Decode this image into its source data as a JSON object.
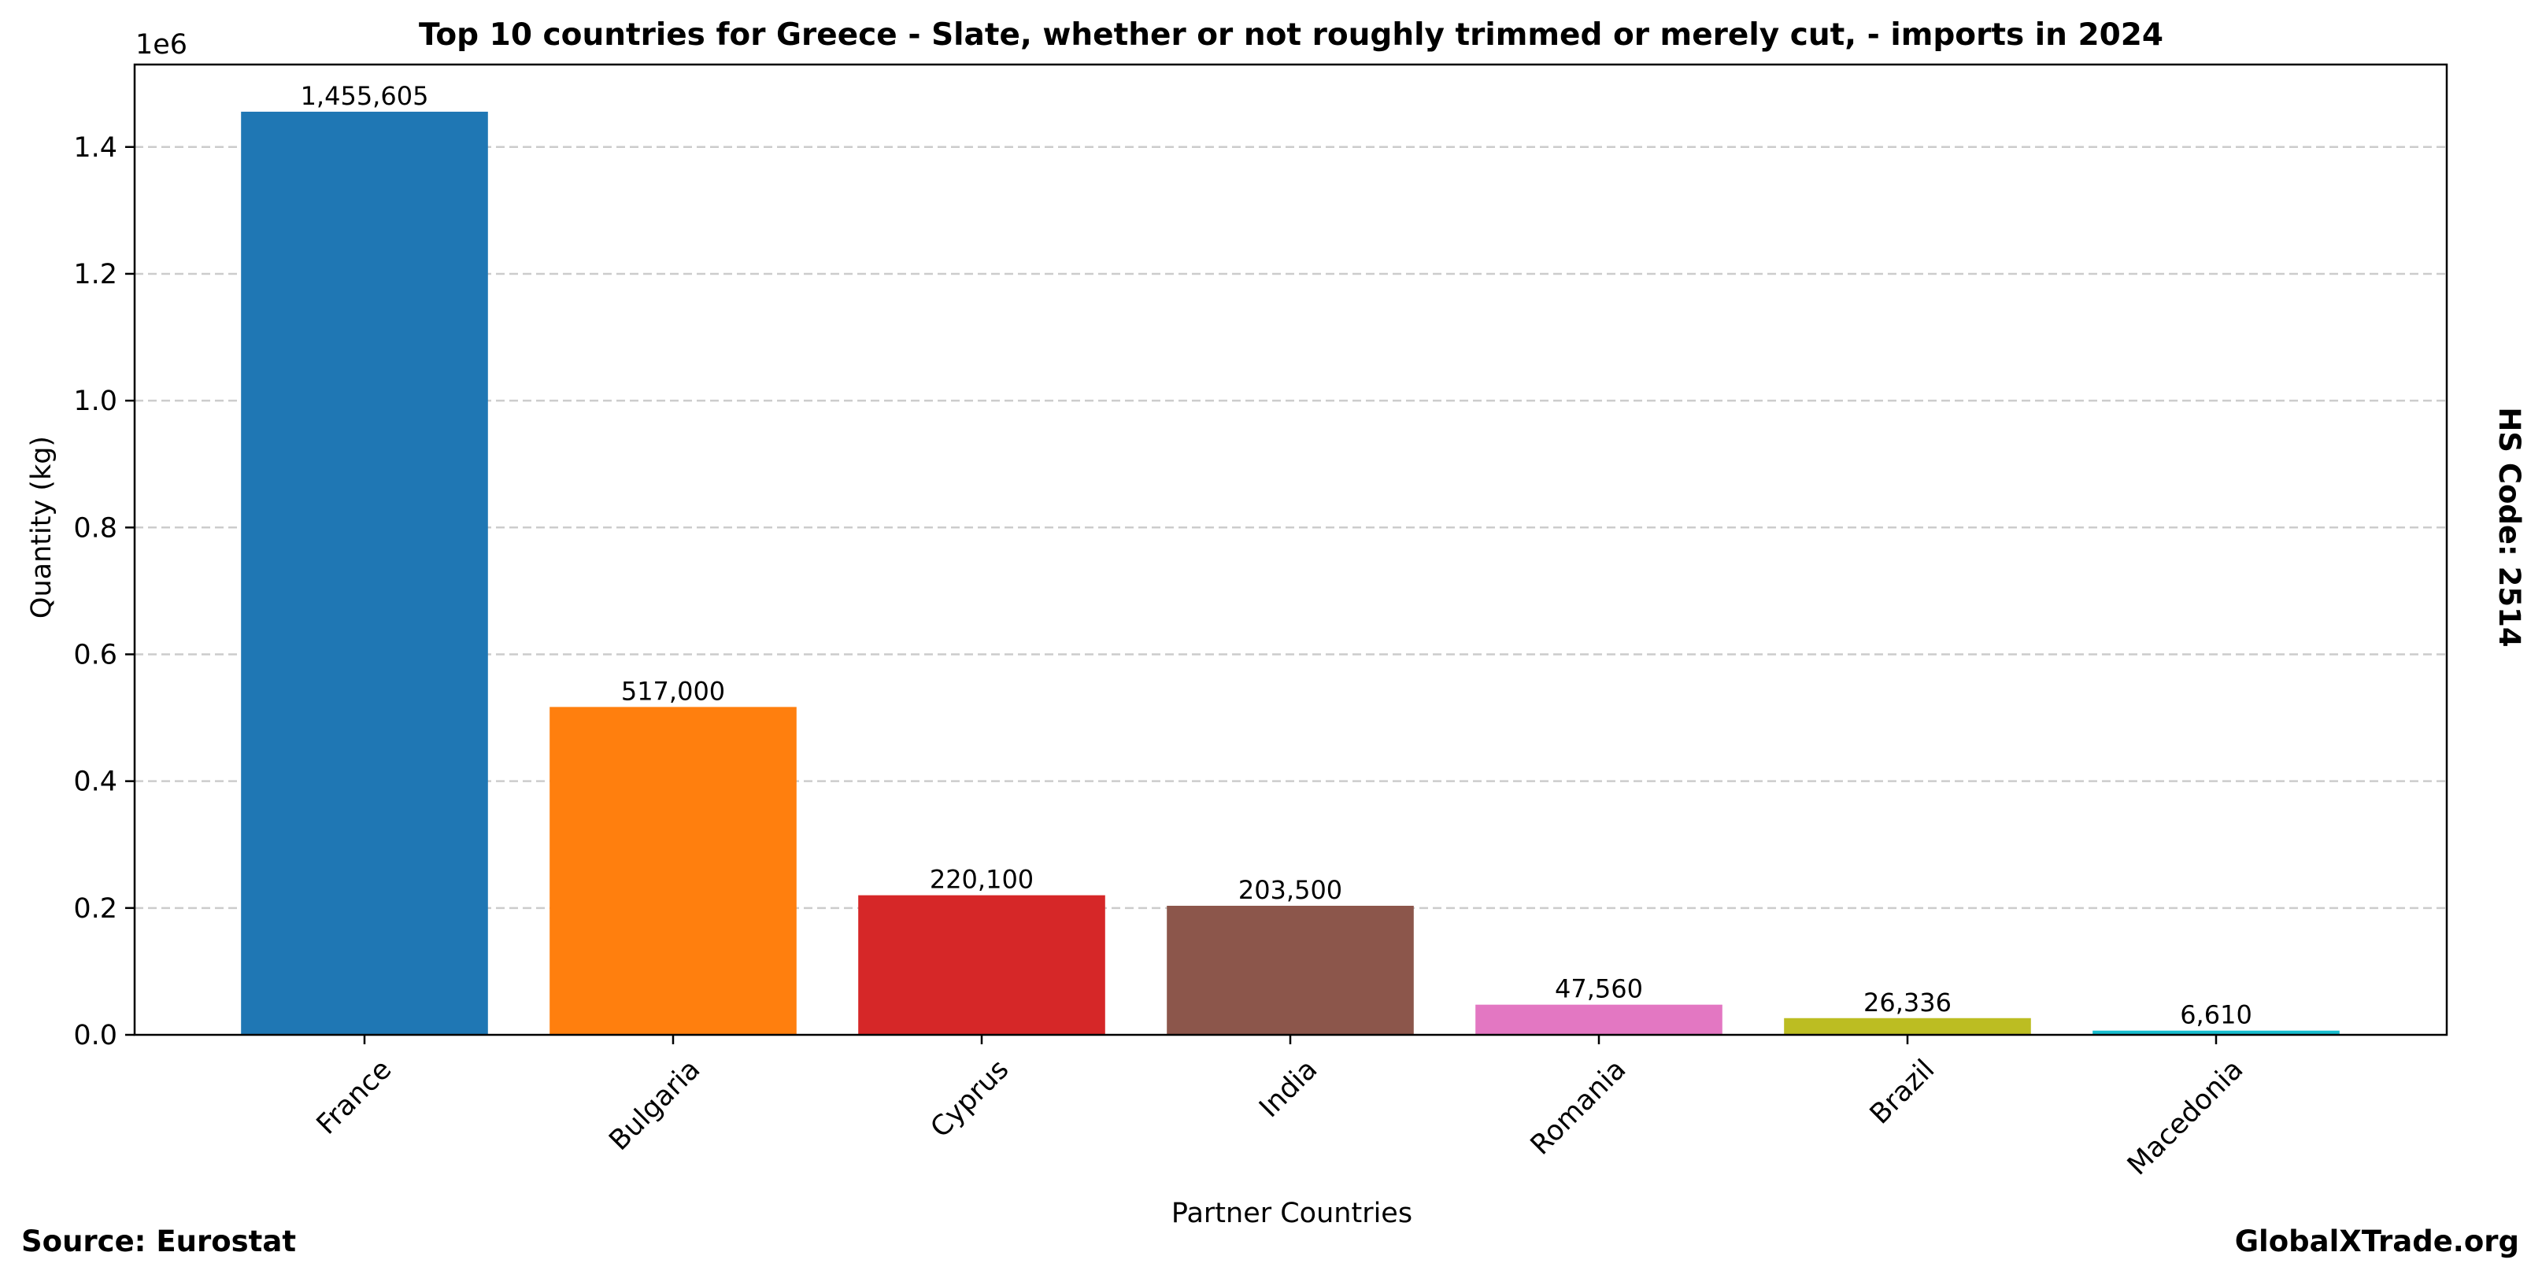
{
  "chart_data": {
    "type": "bar",
    "title": "Top 10 countries for Greece - Slate, whether or not roughly trimmed or merely cut, - imports in 2024",
    "xlabel": "Partner Countries",
    "ylabel": "Quantity (kg)",
    "y_scale_label": "1e6",
    "ylim": [
      0,
      1530000
    ],
    "yticks": [
      0,
      200000,
      400000,
      600000,
      800000,
      1000000,
      1200000,
      1400000
    ],
    "ytick_labels": [
      "0.0",
      "0.2",
      "0.4",
      "0.6",
      "0.8",
      "1.0",
      "1.2",
      "1.4"
    ],
    "grid": "y-dashed",
    "categories": [
      "France",
      "Bulgaria",
      "Cyprus",
      "India",
      "Romania",
      "Brazil",
      "Macedonia"
    ],
    "values": [
      1455605,
      517000,
      220100,
      203500,
      47560,
      26336,
      6610
    ],
    "value_labels": [
      "1,455,605",
      "517,000",
      "220,100",
      "203,500",
      "47,560",
      "26,336",
      "6,610"
    ],
    "colors": [
      "#1f77b4",
      "#ff7f0e",
      "#d62728",
      "#8c564b",
      "#e377c2",
      "#bcbd22",
      "#17becf"
    ]
  },
  "side_label": "HS Code: 2514",
  "footer": {
    "source": "Source: Eurostat",
    "brand": "GlobalXTrade.org"
  }
}
